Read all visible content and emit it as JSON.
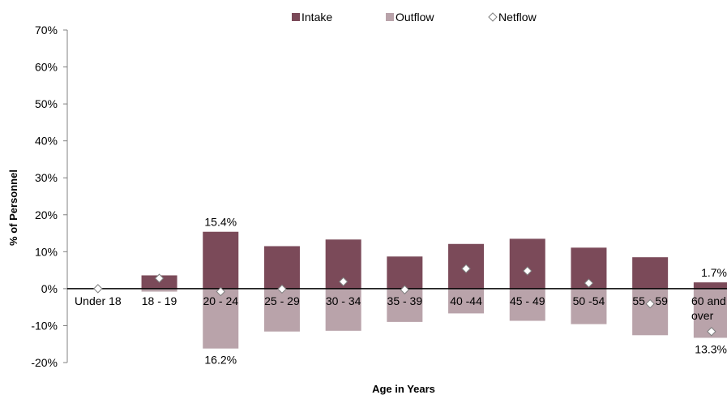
{
  "chart_data": {
    "type": "bar",
    "title": "",
    "xlabel": "Age in Years",
    "ylabel": "% of Personnel",
    "ylim": [
      -20,
      70
    ],
    "y_ticks": [
      -20,
      -10,
      0,
      10,
      20,
      30,
      40,
      50,
      60,
      70
    ],
    "y_tick_labels": [
      "-20%",
      "-10%",
      "0%",
      "10%",
      "20%",
      "30%",
      "40%",
      "50%",
      "60%",
      "70%"
    ],
    "grid": false,
    "legend_position": "top",
    "categories": [
      [
        "Under 18"
      ],
      [
        "18 - 19"
      ],
      [
        "20 - 24"
      ],
      [
        "25 - 29"
      ],
      [
        "30 - 34"
      ],
      [
        "35 - 39"
      ],
      [
        "40 -44"
      ],
      [
        "45 - 49"
      ],
      [
        "50 -54"
      ],
      [
        "55 - 59"
      ],
      [
        "60 and",
        "over"
      ]
    ],
    "series": [
      {
        "name": "Intake",
        "type": "bar",
        "color": "#7b4a59",
        "values": [
          0,
          3.6,
          15.4,
          11.5,
          13.3,
          8.7,
          12.1,
          13.5,
          11.1,
          8.5,
          1.7
        ]
      },
      {
        "name": "Outflow",
        "type": "bar",
        "color": "#b9a3aa",
        "values": [
          0,
          -0.8,
          -16.2,
          -11.6,
          -11.4,
          -9.0,
          -6.7,
          -8.7,
          -9.6,
          -12.6,
          -13.3
        ]
      },
      {
        "name": "Netflow",
        "type": "marker",
        "marker": "diamond",
        "values": [
          0,
          2.8,
          -0.8,
          -0.1,
          1.9,
          -0.3,
          5.4,
          4.8,
          1.5,
          -4.1,
          -11.6
        ]
      }
    ],
    "data_labels": [
      {
        "category_index": 2,
        "series": "Intake",
        "text": "15.4%"
      },
      {
        "category_index": 2,
        "series": "Outflow",
        "text": "16.2%"
      },
      {
        "category_index": 10,
        "series": "Intake",
        "text": "1.7%"
      },
      {
        "category_index": 10,
        "series": "Outflow",
        "text": "13.3%"
      }
    ]
  }
}
